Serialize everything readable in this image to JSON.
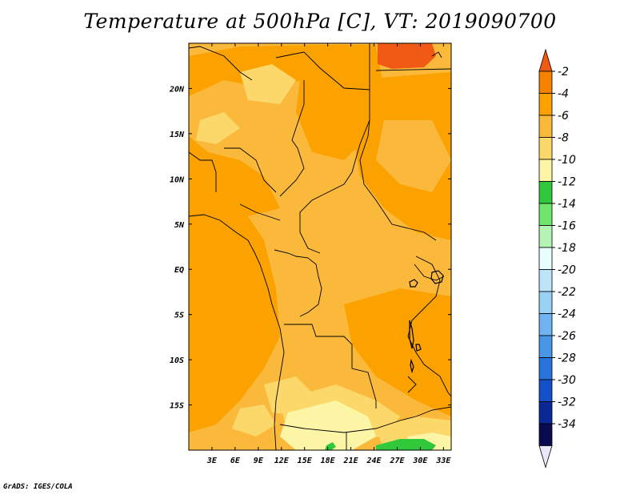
{
  "title": "Temperature at 500hPa [C], VT: 2019090700",
  "footer": "GrADS: IGES/COLA",
  "map": {
    "lon_range": [
      0,
      34
    ],
    "lat_range": [
      -20,
      25
    ],
    "x_ticks": [
      "3E",
      "6E",
      "9E",
      "12E",
      "15E",
      "18E",
      "21E",
      "24E",
      "27E",
      "30E",
      "33E"
    ],
    "y_ticks": [
      "20N",
      "15N",
      "10N",
      "5N",
      "EQ",
      "5S",
      "10S",
      "15S"
    ]
  },
  "colorbar": {
    "labels": [
      "-2",
      "-4",
      "-6",
      "-8",
      "-10",
      "-12",
      "-14",
      "-16",
      "-18",
      "-20",
      "-22",
      "-24",
      "-26",
      "-28",
      "-30",
      "-32",
      "-34"
    ],
    "colors": [
      "#f05a14",
      "#f78200",
      "#fba200",
      "#fbb93c",
      "#fcd86a",
      "#fdf5a6",
      "#32c83c",
      "#6ee66e",
      "#b4f5b4",
      "#e6ffff",
      "#bde5fa",
      "#9ad2f5",
      "#6fb4f0",
      "#4896e6",
      "#2874dc",
      "#1450c8",
      "#0a2896",
      "#0a0a50",
      "#e8e8f8"
    ]
  },
  "colors": {
    "warm": "#f78200",
    "mid": "#fba200",
    "light": "#fbb93c",
    "pale": "#fcd86a",
    "cream": "#fdf5a6",
    "green": "#32c83c",
    "hot": "#f05a14"
  }
}
